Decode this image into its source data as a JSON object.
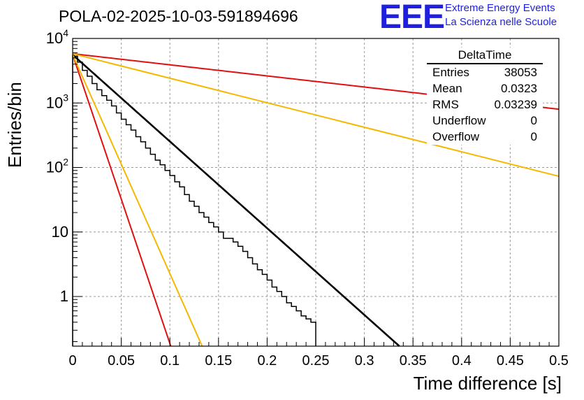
{
  "title": "POLA-02-2025-10-03-591894696",
  "logo": {
    "mark": "EEE",
    "line1": "Extreme Energy Events",
    "line2": "La Scienza nelle Scuole",
    "color": "#1f1fe0"
  },
  "stats": {
    "name": "DeltaTime",
    "rows": [
      {
        "label": "Entries",
        "value": "38053"
      },
      {
        "label": "Mean",
        "value": "0.0323"
      },
      {
        "label": "RMS",
        "value": "0.03239"
      },
      {
        "label": "Underflow",
        "value": "0"
      },
      {
        "label": "Overflow",
        "value": "0"
      }
    ]
  },
  "chart_data": {
    "type": "histogram",
    "title": "POLA-02-2025-10-03-591894696",
    "xlabel": "Time difference [s]",
    "ylabel": "Entries/bin",
    "xlim": [
      0,
      0.5
    ],
    "ylim": [
      0.17,
      10000
    ],
    "yscale": "log",
    "grid": true,
    "bin_width": 0.005,
    "xticks": [
      0,
      0.05,
      0.1,
      0.15,
      0.2,
      0.25,
      0.3,
      0.35,
      0.4,
      0.45,
      0.5
    ],
    "xtick_labels": [
      "0",
      "0.05",
      "0.1",
      "0.15",
      "0.2",
      "0.25",
      "0.3",
      "0.35",
      "0.4",
      "0.45",
      "0.5"
    ],
    "yticks": [
      1,
      10,
      100,
      1000,
      10000
    ],
    "ytick_labels": [
      "1",
      "10",
      "10^2",
      "10^3",
      "10^4"
    ],
    "histogram": {
      "bin_edges_start": 0,
      "counts": [
        5300,
        4300,
        3200,
        2600,
        2000,
        1600,
        1300,
        1100,
        900,
        700,
        560,
        460,
        380,
        300,
        250,
        200,
        160,
        130,
        110,
        90,
        75,
        60,
        50,
        38,
        30,
        25,
        20,
        17,
        14,
        12,
        10,
        8,
        8,
        7,
        6,
        5,
        4,
        3.2,
        2.6,
        2.2,
        1.8,
        1.4,
        1.2,
        1.0,
        0.8,
        0.7,
        0.6,
        0.5,
        0.45,
        0.4
      ],
      "color": "#000000"
    },
    "fits": [
      {
        "name": "black-fit",
        "color": "#000000",
        "width": 2.6,
        "a": 5600,
        "tau": 0.0323,
        "x_end": 0.34
      },
      {
        "name": "red-fast",
        "color": "#e01010",
        "width": 2,
        "a": 5600,
        "tau": 0.0097,
        "x_end": 0.105
      },
      {
        "name": "orange-fast",
        "color": "#f5b800",
        "width": 2,
        "a": 5600,
        "tau": 0.0128,
        "x_end": 0.135
      },
      {
        "name": "red-slow",
        "color": "#e01010",
        "width": 2,
        "a": 5800,
        "tau": 0.2525,
        "x_end": 0.5
      },
      {
        "name": "orange-slow",
        "color": "#f5b800",
        "width": 2,
        "a": 5800,
        "tau": 0.1143,
        "x_end": 0.5
      }
    ]
  }
}
